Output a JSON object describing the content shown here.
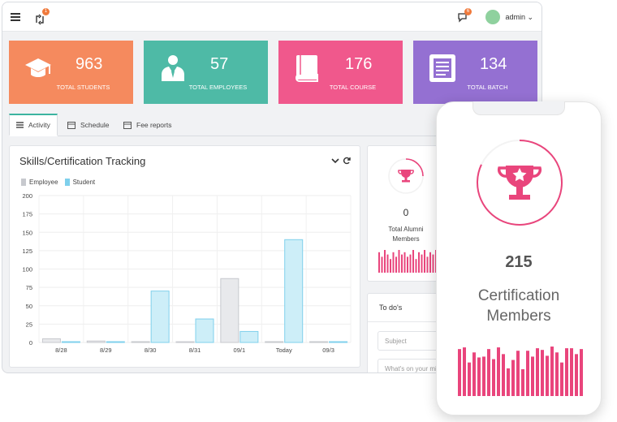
{
  "topbar": {
    "notif_badge": "1",
    "chat_badge": "6",
    "user_name": "admin ⌄"
  },
  "stats": [
    {
      "value": "963",
      "label": "TOTAL STUDENTS",
      "color": "#f58a5e",
      "icon": "graduation-cap-icon"
    },
    {
      "value": "57",
      "label": "TOTAL EMPLOYEES",
      "color": "#4ebaa6",
      "icon": "employee-icon"
    },
    {
      "value": "176",
      "label": "TOTAL COURSE",
      "color": "#f0588c",
      "icon": "book-icon"
    },
    {
      "value": "134",
      "label": "TOTAL BATCH",
      "color": "#9470d2",
      "icon": "document-icon"
    }
  ],
  "tabs": [
    "Activity",
    "Schedule",
    "Fee reports"
  ],
  "chart_panel": {
    "title": "Skills/Certification Tracking",
    "collapse_icon": "chevron-down-icon",
    "refresh_icon": "refresh-icon"
  },
  "chart_data": {
    "type": "bar",
    "categories": [
      "8/28",
      "8/29",
      "8/30",
      "8/31",
      "09/1",
      "Today",
      "09/3"
    ],
    "series": [
      {
        "name": "Employee",
        "values": [
          5,
          2,
          0,
          1,
          87,
          0,
          0
        ],
        "color": "#e8e9ec"
      },
      {
        "name": "Student",
        "values": [
          0,
          0,
          70,
          32,
          15,
          140,
          0
        ],
        "color": "#cdeef8"
      }
    ],
    "ylim": [
      0,
      200
    ],
    "yticks": [
      0,
      25,
      50,
      75,
      100,
      125,
      150,
      175,
      200
    ],
    "grid": true,
    "legend": "top-left"
  },
  "alumni": {
    "value": "0",
    "label_line1": "Total Alumni",
    "label_line2": "Members",
    "spark": [
      9,
      7,
      10,
      8,
      6,
      9,
      7,
      10,
      8,
      9,
      7,
      8,
      10,
      6,
      9,
      8,
      10,
      7,
      9,
      8,
      10,
      9
    ]
  },
  "todo": {
    "title": "To do's",
    "subject_placeholder": "Subject",
    "message_placeholder": "What's on your mind"
  },
  "phone": {
    "value": "215",
    "label_line1": "Certification",
    "label_line2": "Members",
    "progress": 0.82,
    "spark": [
      56,
      58,
      40,
      52,
      46,
      47,
      56,
      44,
      58,
      50,
      33,
      43,
      54,
      32,
      54,
      47,
      57,
      55,
      48,
      59,
      52,
      40,
      57,
      57,
      50,
      56
    ]
  },
  "colors": {
    "accent": "#3cb4a0",
    "pink": "#e9457c",
    "blue_bar": "#7fd0ec",
    "gray_bar": "#c7c9ce"
  }
}
